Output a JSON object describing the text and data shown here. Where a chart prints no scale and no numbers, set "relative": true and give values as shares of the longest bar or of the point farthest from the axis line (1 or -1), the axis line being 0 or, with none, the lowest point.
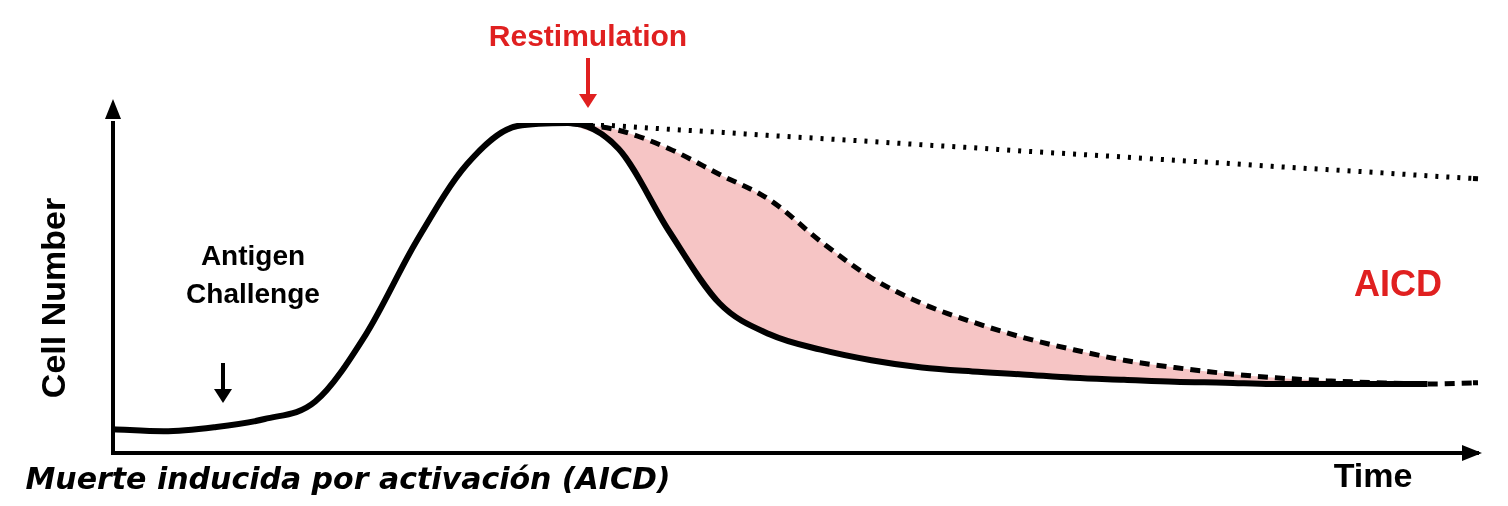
{
  "chart_data": {
    "type": "line",
    "relative": true,
    "ylabel": "Cell Number",
    "xlabel": "Time",
    "legend": false,
    "grid": false,
    "marker": "none",
    "categories": [
      null,
      null,
      null,
      null,
      null,
      null,
      null,
      null,
      null,
      null,
      null,
      null,
      null,
      null,
      null,
      null,
      null,
      null,
      null,
      null,
      null,
      null,
      null,
      null,
      null,
      null,
      null,
      null
    ],
    "series": [
      {
        "color": "#000000",
        "line_style": "solid",
        "values": [
          0.072,
          0.066,
          0.078,
          0.103,
          0.156,
          0.359,
          0.641,
          0.875,
          0.991,
          1,
          0.922,
          0.672,
          0.453,
          0.359,
          0.313,
          0.281,
          0.259,
          0.247,
          0.238,
          0.228,
          0.222,
          0.216,
          0.213,
          0.209,
          0.209,
          0.209,
          0.209,
          null
        ]
      },
      {
        "color": "#000000",
        "line_style": "dashed",
        "values": [
          null,
          null,
          null,
          null,
          null,
          null,
          null,
          null,
          null,
          1,
          0.978,
          0.922,
          0.844,
          0.766,
          0.641,
          0.531,
          0.453,
          0.397,
          0.35,
          0.313,
          0.281,
          0.259,
          0.241,
          0.228,
          0.219,
          0.213,
          0.209,
          0.213
        ],
        "lower": [
          null,
          null,
          null,
          null,
          null,
          null,
          null,
          null,
          null,
          1,
          0.922,
          0.672,
          0.453,
          0.359,
          0.313,
          0.281,
          0.259,
          0.247,
          0.238,
          0.228,
          0.222,
          0.216,
          0.213,
          0.209,
          0.209,
          0.209,
          0.209,
          null
        ],
        "upper": [
          null,
          null,
          null,
          null,
          null,
          null,
          null,
          null,
          null,
          1,
          0.978,
          0.922,
          0.844,
          0.766,
          0.641,
          0.531,
          0.453,
          0.397,
          0.35,
          0.313,
          0.281,
          0.259,
          0.241,
          0.228,
          0.219,
          0.213,
          0.209,
          null
        ]
      },
      {
        "color": "#000000",
        "line_style": "dotted",
        "values": [
          null,
          null,
          null,
          null,
          null,
          null,
          null,
          null,
          null,
          1,
          0.991,
          0.981,
          0.972,
          0.962,
          0.953,
          0.944,
          0.934,
          0.925,
          0.915,
          0.906,
          0.897,
          0.887,
          0.878,
          0.868,
          0.859,
          0.85,
          0.84,
          0.831
        ]
      }
    ],
    "annotations": [
      "Restimulation",
      "Antigen\nChallenge",
      "AICD",
      "Muerte inducida por activación (AICD)"
    ]
  }
}
